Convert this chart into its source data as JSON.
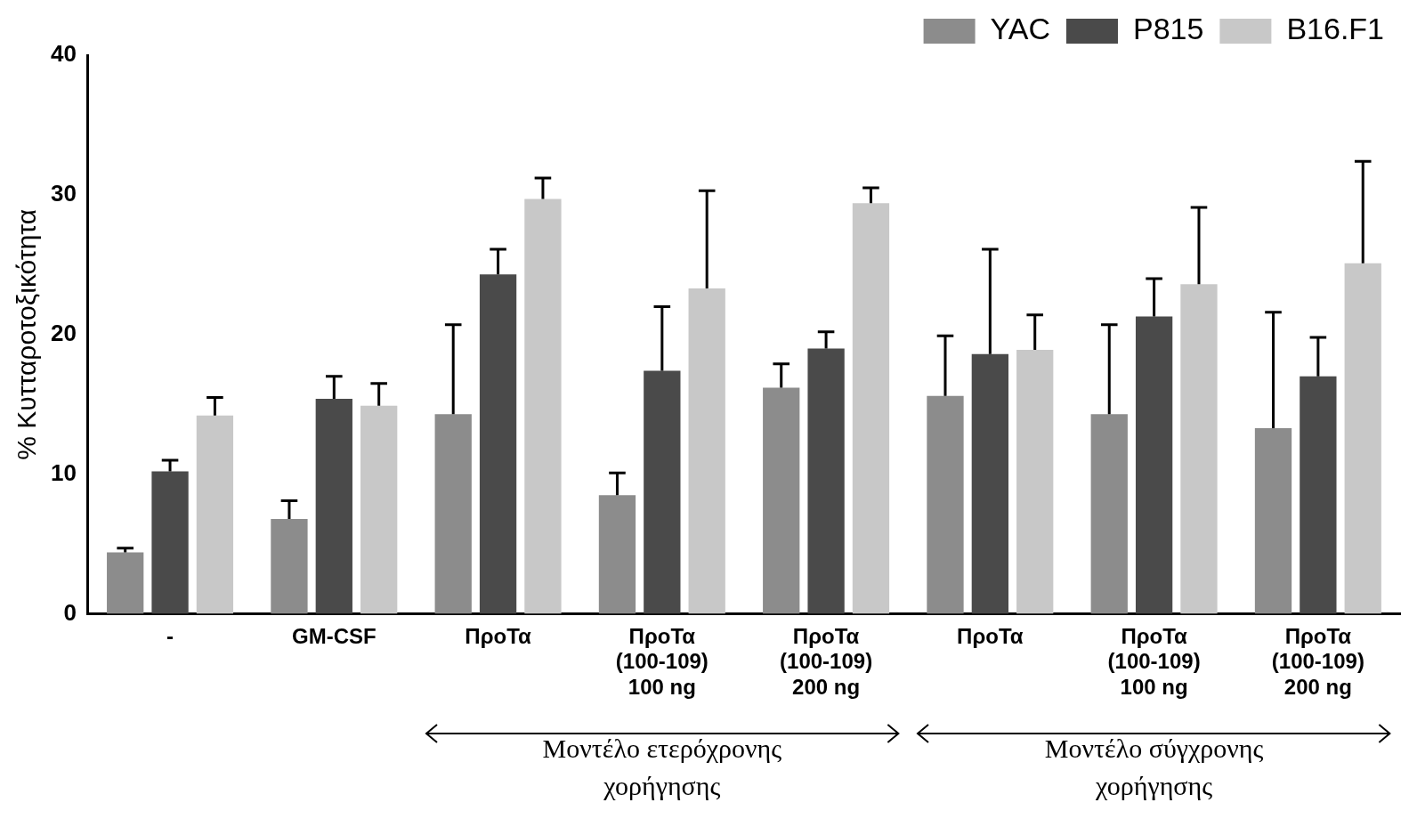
{
  "chart_data": {
    "type": "bar",
    "ylabel": "% Κυτταροτοξικότητα",
    "categories": [
      "-",
      "GM-CSF",
      "ΠροΤα",
      "ΠροΤα\n(100-109)\n100 ng",
      "ΠροΤα\n(100-109)\n200 ng",
      "ΠροΤα",
      "ΠροΤα\n(100-109)\n100 ng",
      "ΠροΤα\n(100-109)\n200 ng"
    ],
    "series": [
      {
        "name": "YAC",
        "color": "#8c8c8c",
        "values": [
          4.4,
          6.8,
          14.3,
          8.5,
          16.2,
          15.6,
          14.3,
          13.3
        ],
        "errors": [
          [
            4.4,
            4.7
          ],
          [
            6.8,
            8.1
          ],
          [
            14.3,
            20.7
          ],
          [
            8.5,
            10.1
          ],
          [
            16.2,
            17.9
          ],
          [
            15.6,
            19.9
          ],
          [
            14.3,
            20.7
          ],
          [
            13.3,
            21.6
          ]
        ]
      },
      {
        "name": "P815",
        "color": "#4a4a4a",
        "values": [
          10.2,
          15.4,
          24.3,
          17.4,
          19.0,
          18.6,
          21.3,
          17.0
        ],
        "errors": [
          [
            10.2,
            11.0
          ],
          [
            15.4,
            17.0
          ],
          [
            24.3,
            26.1
          ],
          [
            17.4,
            22.0
          ],
          [
            19.0,
            20.2
          ],
          [
            18.6,
            26.1
          ],
          [
            21.3,
            24.0
          ],
          [
            17.0,
            19.8
          ]
        ]
      },
      {
        "name": "B16.F1",
        "color": "#c8c8c8",
        "values": [
          14.2,
          14.9,
          29.7,
          23.3,
          29.4,
          18.9,
          23.6,
          25.1
        ],
        "errors": [
          [
            14.2,
            15.5
          ],
          [
            14.9,
            16.5
          ],
          [
            29.7,
            31.2
          ],
          [
            23.3,
            30.3
          ],
          [
            29.4,
            30.5
          ],
          [
            18.9,
            21.4
          ],
          [
            23.6,
            29.1
          ],
          [
            25.1,
            32.4
          ]
        ]
      }
    ],
    "ylim": [
      0,
      40
    ],
    "yticks": [
      0,
      10,
      20,
      30,
      40
    ],
    "grid": false,
    "legend": "top right",
    "annotations": [
      "Μοντέλο ετερόχρονης χορήγησης",
      "Μοντέλο σύγχρονης χορήγησης"
    ]
  }
}
